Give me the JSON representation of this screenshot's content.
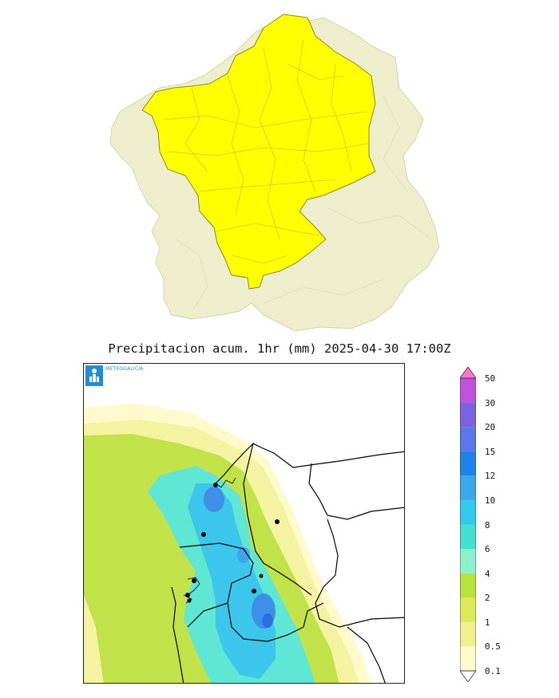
{
  "title": "Precipitacion acum. 1hr (mm) 2025-04-30 17:00Z",
  "logo_text": "METEOGALICIA",
  "logo_icon": "meteogalicia-logo-icon",
  "top_map": {
    "warning_fill": "#ffff00",
    "background_fill": "#eeeecc"
  },
  "stations": [
    {
      "name": "station-1"
    },
    {
      "name": "station-2"
    },
    {
      "name": "station-3"
    },
    {
      "name": "station-4"
    },
    {
      "name": "station-5"
    },
    {
      "name": "station-6"
    },
    {
      "name": "station-7"
    },
    {
      "name": "station-8"
    }
  ],
  "colorbar": {
    "levels": [
      "0.1",
      "0.5",
      "1",
      "2",
      "4",
      "6",
      "8",
      "10",
      "12",
      "15",
      "20",
      "30",
      "50"
    ],
    "colors": [
      "#fffacc",
      "#f0f08c",
      "#dcea5a",
      "#b9e23c",
      "#8ef0c8",
      "#44e0d2",
      "#33c8ee",
      "#3ba6ea",
      "#1e82e6",
      "#5a78e8",
      "#7a62e0",
      "#c050e0",
      "#ff78d0"
    ]
  }
}
